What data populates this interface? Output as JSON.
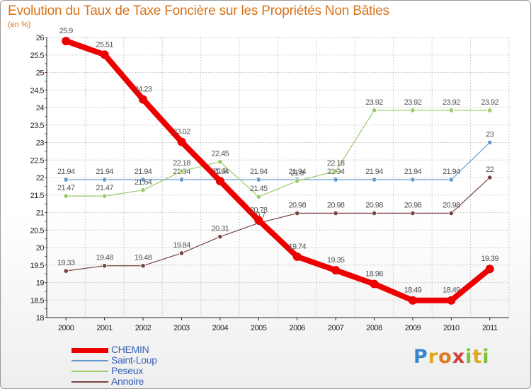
{
  "title": "Evolution du Taux de Taxe Foncière sur les Propriétés Non Bâties",
  "unit": "(en %)",
  "logo_text": "Proxiti",
  "colors": {
    "title": "#d8731a",
    "axis": "#222222",
    "grid": "#cccccc",
    "legend_text": "#3a60b8"
  },
  "chart_data": {
    "type": "line",
    "x": [
      "2000",
      "2001",
      "2002",
      "2003",
      "2004",
      "2005",
      "2006",
      "2007",
      "2008",
      "2009",
      "2010",
      "2011"
    ],
    "ylim": [
      18,
      26
    ],
    "ytick_step": 0.5,
    "ytick_labels": [
      "18",
      "18.5",
      "19",
      "19.5",
      "20",
      "20.5",
      "21",
      "21.5",
      "22",
      "22.5",
      "23",
      "23.5",
      "24",
      "24.5",
      "25",
      "25.5",
      "26"
    ],
    "grid": true,
    "legend_position": "bottom-left",
    "series": [
      {
        "name": "CHEMIN",
        "color": "#ee0000",
        "values": [
          25.9,
          25.51,
          24.23,
          23.02,
          21.9,
          20.78,
          19.74,
          19.35,
          18.96,
          18.49,
          18.49,
          19.39
        ],
        "labels": [
          "25.9",
          "25.51",
          "24.23",
          "23.02",
          "21.9",
          "20.78",
          "19.74",
          "19.35",
          "18.96",
          "18.49",
          "18.49",
          "19.39"
        ],
        "bold": true
      },
      {
        "name": "Saint-Loup",
        "color": "#6699cc",
        "values": [
          21.94,
          21.94,
          21.94,
          21.94,
          21.94,
          21.94,
          21.94,
          21.94,
          21.94,
          21.94,
          21.94,
          23
        ],
        "labels": [
          "21.94",
          "21.94",
          "21.94",
          "21.94",
          "21.94",
          "21.94",
          "21.94",
          "21.94",
          "21.94",
          "21.94",
          "21.94",
          "23"
        ],
        "bold": false
      },
      {
        "name": "Peseux",
        "color": "#99cc66",
        "values": [
          21.47,
          21.47,
          21.64,
          22.18,
          22.45,
          21.45,
          21.9,
          22.18,
          23.92,
          23.92,
          23.92,
          23.92
        ],
        "labels": [
          "21.47",
          "21.47",
          "21.64",
          "22.18",
          "22.45",
          "21.45",
          "21.9",
          "22.18",
          "23.92",
          "23.92",
          "23.92",
          "23.92"
        ],
        "bold": false
      },
      {
        "name": "Annoire",
        "color": "#774444",
        "values": [
          19.33,
          19.48,
          19.48,
          19.84,
          20.31,
          20.7,
          20.98,
          20.98,
          20.98,
          20.98,
          20.98,
          22
        ],
        "labels": [
          "19.33",
          "19.48",
          "19.48",
          "19.84",
          "20.31",
          "20.7",
          "20.98",
          "20.98",
          "20.98",
          "20.98",
          "20.98",
          "22"
        ],
        "bold": false
      }
    ]
  }
}
